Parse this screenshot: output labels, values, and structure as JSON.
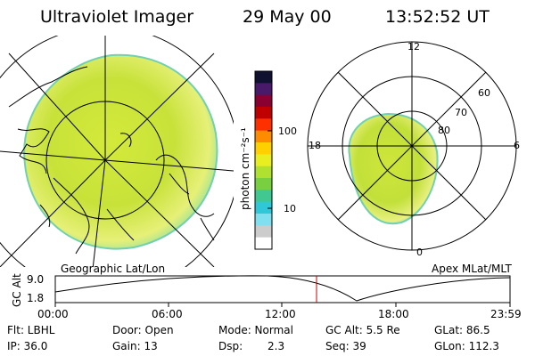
{
  "header": {
    "instrument": "Ultraviolet Imager",
    "date": "29 May 00",
    "time": "13:52:52 UT"
  },
  "left_panel": {
    "caption": "Geographic Lat/Lon"
  },
  "right_panel": {
    "caption": "Apex MLat/MLT",
    "mlt_labels": [
      "12",
      "6",
      "0",
      "18"
    ],
    "lat_labels": [
      "60",
      "70",
      "80"
    ]
  },
  "colorbar": {
    "label": "photon cm⁻²s⁻¹",
    "ticks": [
      "100",
      "10"
    ],
    "colors": [
      "#101030",
      "#4a1a6a",
      "#8a0030",
      "#c00000",
      "#ff3000",
      "#ff8c00",
      "#ffd000",
      "#e8ee20",
      "#b0e030",
      "#78d040",
      "#40c890",
      "#30c8d8",
      "#80e0f0",
      "#cccccc",
      "#ffffff"
    ]
  },
  "altitude_plot": {
    "ylabel": "GC Alt",
    "yticks": [
      "9.0",
      "1.8"
    ],
    "xticks": [
      "00:00",
      "06:00",
      "12:00",
      "18:00",
      "23:59"
    ],
    "current_marker_color": "#cc0000"
  },
  "footer": {
    "row1": {
      "filter": "Flt: LBHL",
      "door": "Door: Open",
      "mode": "Mode: Normal",
      "gc_alt": "GC Alt: 5.5 Re",
      "glat": "GLat: 86.5"
    },
    "row2": {
      "ip": "IP: 36.0",
      "gain": "Gain: 13",
      "dsp_label": "Dsp:",
      "dsp_value": "2.3",
      "seq": "Seq: 39",
      "glon": "GLon: 112.3"
    }
  }
}
